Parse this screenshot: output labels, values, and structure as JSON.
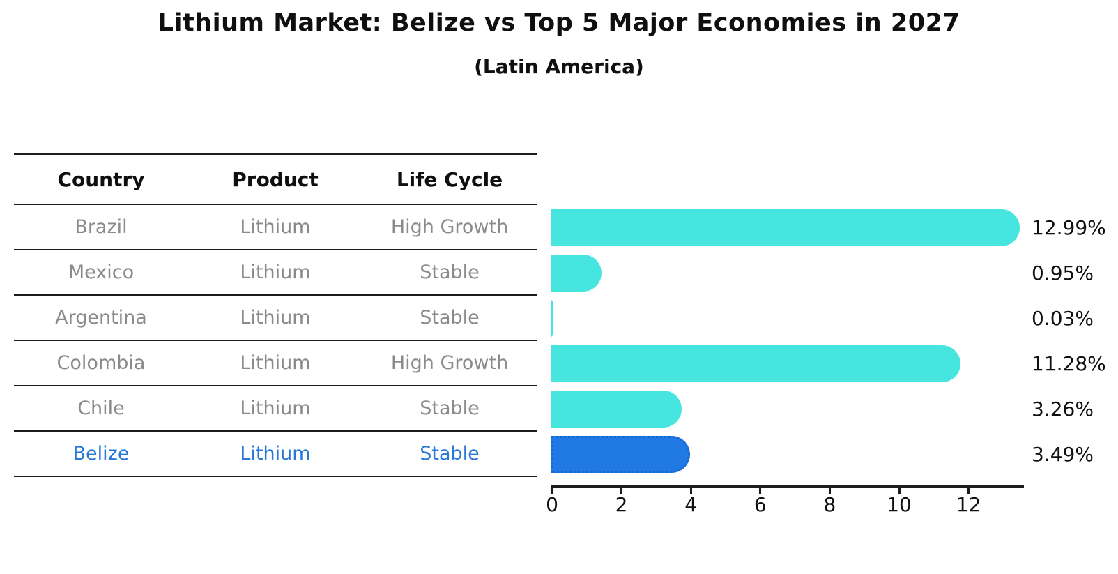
{
  "title": "Lithium Market: Belize vs Top 5 Major Economies in 2027",
  "subtitle": "(Latin America)",
  "table": {
    "headers": [
      "Country",
      "Product",
      "Life Cycle"
    ],
    "rows": [
      {
        "country": "Brazil",
        "product": "Lithium",
        "life_cycle": "High Growth",
        "highlight": false
      },
      {
        "country": "Mexico",
        "product": "Lithium",
        "life_cycle": "Stable",
        "highlight": false
      },
      {
        "country": "Argentina",
        "product": "Lithium",
        "life_cycle": "Stable",
        "highlight": false
      },
      {
        "country": "Colombia",
        "product": "Lithium",
        "life_cycle": "High Growth",
        "highlight": false
      },
      {
        "country": "Chile",
        "product": "Lithium",
        "life_cycle": "Stable",
        "highlight": false
      },
      {
        "country": "Belize",
        "product": "Lithium",
        "life_cycle": "Stable",
        "highlight": true
      }
    ]
  },
  "chart_data": {
    "type": "bar",
    "orientation": "horizontal",
    "categories": [
      "Brazil",
      "Mexico",
      "Argentina",
      "Colombia",
      "Chile",
      "Belize"
    ],
    "values": [
      12.99,
      0.95,
      0.03,
      11.28,
      3.26,
      3.49
    ],
    "value_labels": [
      "12.99%",
      "0.95%",
      "0.03%",
      "11.28%",
      "3.26%",
      "3.49%"
    ],
    "x_ticks": [
      0,
      2,
      4,
      6,
      8,
      10,
      12
    ],
    "xlim": [
      0,
      13.6
    ],
    "grid": false,
    "legend": "none",
    "highlight_category": "Belize",
    "highlight_index": 5,
    "title": "Lithium Market: Belize vs Top 5 Major Economies in 2027",
    "subtitle": "(Latin America)"
  },
  "colors": {
    "bar": "#46E5E0",
    "highlight_bar": "#2079E4",
    "highlight_border": "#1866CF",
    "highlight_text": "#2878D6",
    "text": "#0F0F0F",
    "muted_text": "#8A8A8A",
    "line": "#1C1C1C"
  }
}
